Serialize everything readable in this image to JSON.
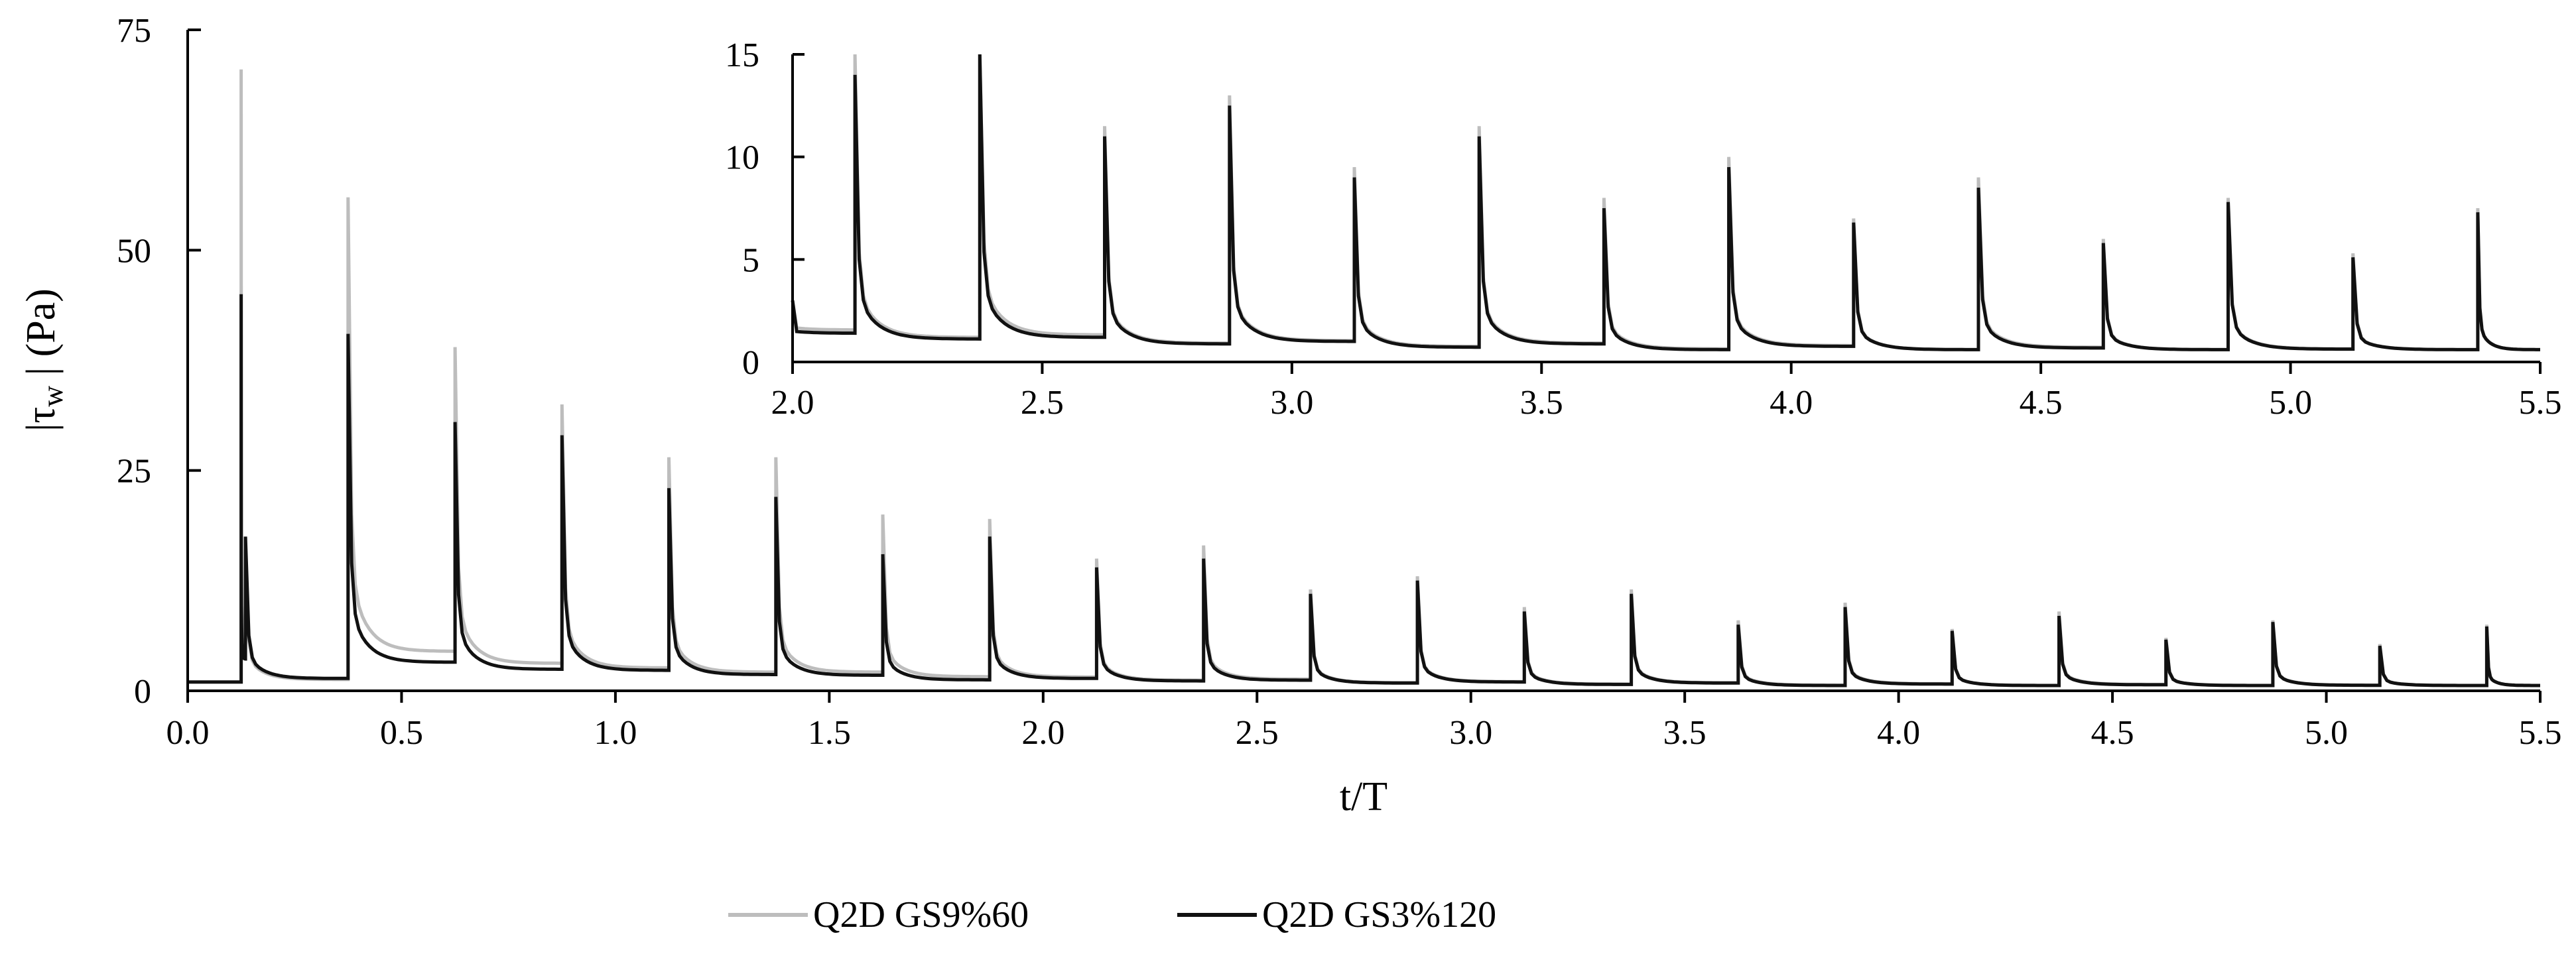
{
  "chart_data": [
    {
      "type": "line",
      "role": "main",
      "xlabel": "t/T",
      "ylabel": "|τw| (Pa)",
      "ylabel_main": "|τ",
      "ylabel_sub": "w",
      "ylabel_tail": " | (Pa)",
      "xlim": [
        0.0,
        5.5
      ],
      "ylim": [
        0,
        75
      ],
      "xticks": [
        "0.0",
        "0.5",
        "1.0",
        "1.5",
        "2.0",
        "2.5",
        "3.0",
        "3.5",
        "4.0",
        "4.5",
        "5.0",
        "5.5"
      ],
      "yticks": [
        "0",
        "25",
        "50",
        "75"
      ],
      "grid": false,
      "events": [
        {
          "t": 0.125,
          "gs9": 70.5,
          "gs3": 45.0
        },
        {
          "t": 0.135,
          "gs9": 16.0,
          "gs3": 17.5
        },
        {
          "t": 0.375,
          "gs9": 56.0,
          "gs3": 40.5
        },
        {
          "t": 0.625,
          "gs9": 39.0,
          "gs3": 30.5
        },
        {
          "t": 0.875,
          "gs9": 32.5,
          "gs3": 29.0
        },
        {
          "t": 1.125,
          "gs9": 26.5,
          "gs3": 23.0
        },
        {
          "t": 1.375,
          "gs9": 26.5,
          "gs3": 22.0
        },
        {
          "t": 1.625,
          "gs9": 20.0,
          "gs3": 15.5
        },
        {
          "t": 1.875,
          "gs9": 19.5,
          "gs3": 17.5
        },
        {
          "t": 2.125,
          "gs9": 15.0,
          "gs3": 14.0
        },
        {
          "t": 2.375,
          "gs9": 16.5,
          "gs3": 15.0
        },
        {
          "t": 2.625,
          "gs9": 11.5,
          "gs3": 11.0
        },
        {
          "t": 2.875,
          "gs9": 13.0,
          "gs3": 12.5
        },
        {
          "t": 3.125,
          "gs9": 9.5,
          "gs3": 9.0
        },
        {
          "t": 3.375,
          "gs9": 11.5,
          "gs3": 11.0
        },
        {
          "t": 3.625,
          "gs9": 8.0,
          "gs3": 7.5
        },
        {
          "t": 3.875,
          "gs9": 10.0,
          "gs3": 9.5
        },
        {
          "t": 4.125,
          "gs9": 7.0,
          "gs3": 6.8
        },
        {
          "t": 4.375,
          "gs9": 9.0,
          "gs3": 8.5
        },
        {
          "t": 4.625,
          "gs9": 6.0,
          "gs3": 5.8
        },
        {
          "t": 4.875,
          "gs9": 8.0,
          "gs3": 7.8
        },
        {
          "t": 5.125,
          "gs9": 5.3,
          "gs3": 5.1
        },
        {
          "t": 5.375,
          "gs9": 7.5,
          "gs3": 7.3
        }
      ]
    },
    {
      "type": "line",
      "role": "inset",
      "xlim": [
        2.0,
        5.5
      ],
      "ylim": [
        0,
        15
      ],
      "xticks": [
        "2.0",
        "2.5",
        "3.0",
        "3.5",
        "4.0",
        "4.5",
        "5.0",
        "5.5"
      ],
      "yticks": [
        "0",
        "5",
        "10",
        "15"
      ],
      "grid": false,
      "start_value": 3.0
    }
  ],
  "legend": [
    {
      "name": "Q2D GS9%60",
      "color": "#bdbdbd"
    },
    {
      "name": "Q2D GS3%120",
      "color": "#111111"
    }
  ],
  "legend_position": "bottom-center",
  "colors": {
    "gs9": "#bdbdbd",
    "gs3": "#111111",
    "axis": "#000000"
  }
}
